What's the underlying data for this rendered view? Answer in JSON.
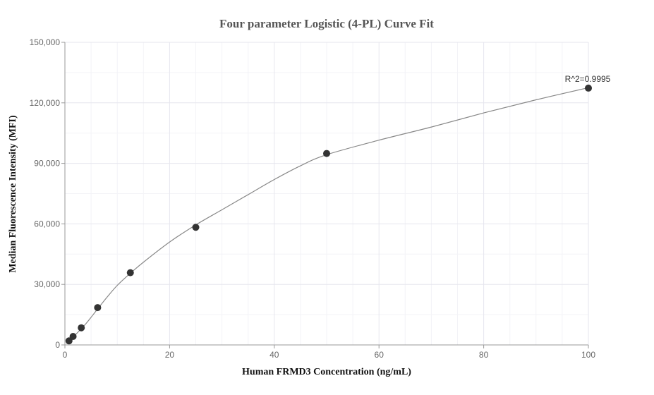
{
  "chart_data": {
    "type": "scatter",
    "title": "Four parameter Logistic (4-PL) Curve Fit",
    "xlabel": "Human FRMD3 Concentration (ng/mL)",
    "ylabel": "Median Fluorescence Intensity (MFI)",
    "xlim": [
      0,
      100
    ],
    "ylim": [
      0,
      150000
    ],
    "xticks": [
      0,
      20,
      40,
      60,
      80,
      100
    ],
    "yticks": [
      0,
      30000,
      60000,
      90000,
      120000,
      150000
    ],
    "xtick_labels": [
      "0",
      "20",
      "40",
      "60",
      "80",
      "100"
    ],
    "ytick_labels": [
      "0",
      "30,000",
      "60,000",
      "90,000",
      "120,000",
      "150,000"
    ],
    "grid": true,
    "points": [
      {
        "x": 0.78,
        "y": 2000
      },
      {
        "x": 1.56,
        "y": 4200
      },
      {
        "x": 3.13,
        "y": 8500
      },
      {
        "x": 6.25,
        "y": 18500
      },
      {
        "x": 12.5,
        "y": 35800
      },
      {
        "x": 25,
        "y": 58300
      },
      {
        "x": 50,
        "y": 94900
      },
      {
        "x": 100,
        "y": 127300
      }
    ],
    "fit_curve": [
      [
        0.78,
        1800
      ],
      [
        2,
        5000
      ],
      [
        4,
        10500
      ],
      [
        6,
        17000
      ],
      [
        8,
        23500
      ],
      [
        10,
        29500
      ],
      [
        12.5,
        35500
      ],
      [
        15,
        41000
      ],
      [
        20,
        51000
      ],
      [
        25,
        59500
      ],
      [
        30,
        67000
      ],
      [
        35,
        74500
      ],
      [
        40,
        82000
      ],
      [
        45,
        88800
      ],
      [
        50,
        94300
      ],
      [
        60,
        101500
      ],
      [
        70,
        108000
      ],
      [
        80,
        115000
      ],
      [
        90,
        121500
      ],
      [
        100,
        127500
      ]
    ],
    "annotation": {
      "text": "R^2=0.9995",
      "x": 100,
      "y": 127300
    },
    "colors": {
      "points": "#333333",
      "curve": "#888888",
      "grid": "#e6e6ee",
      "axis": "#cccccc"
    }
  }
}
